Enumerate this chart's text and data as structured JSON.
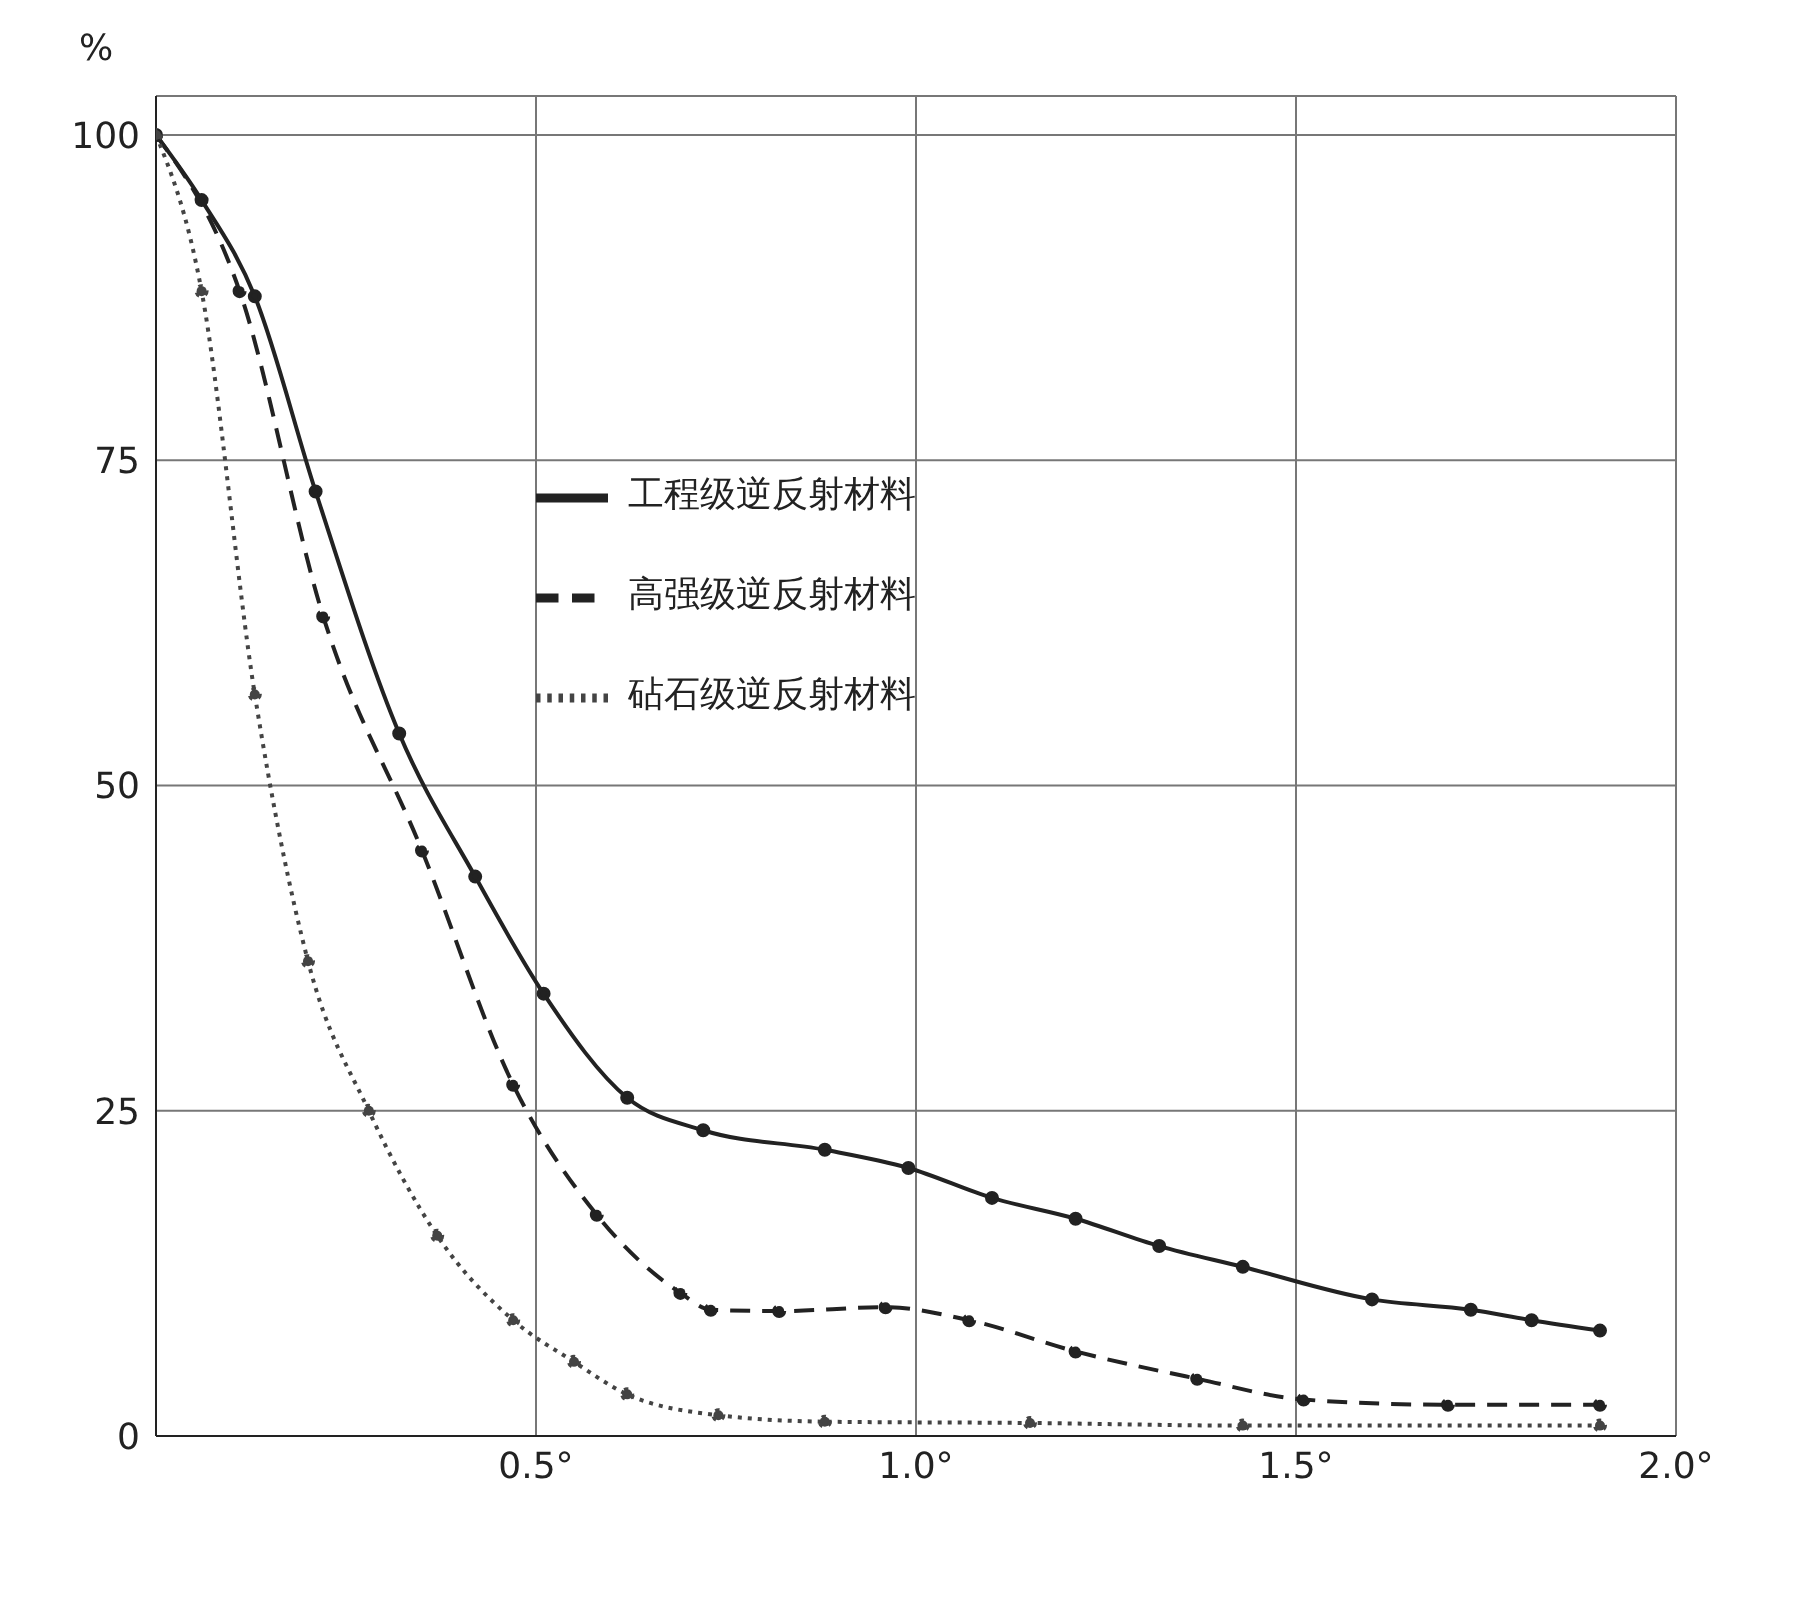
{
  "chart_data": {
    "type": "line",
    "ylabel": "%",
    "xlim": [
      0,
      2.0
    ],
    "ylim": [
      0,
      103
    ],
    "xticks": [
      {
        "value": 0.5,
        "label": "0.5°"
      },
      {
        "value": 1.0,
        "label": "1.0°"
      },
      {
        "value": 1.5,
        "label": "1.5°"
      },
      {
        "value": 2.0,
        "label": "2.0°"
      }
    ],
    "yticks": [
      0,
      25,
      50,
      75,
      100
    ],
    "grid": true,
    "legend": "top",
    "marker": "circle",
    "series": [
      {
        "name": "工程级逆反射材料",
        "color": "#222222",
        "line_style": "solid",
        "x": [
          0,
          0.06,
          0.13,
          0.21,
          0.32,
          0.42,
          0.51,
          0.62,
          0.72,
          0.88,
          0.99,
          1.1,
          1.21,
          1.32,
          1.43,
          1.6,
          1.73,
          1.81,
          1.9
        ],
        "values": [
          100,
          95,
          87.6,
          72.6,
          54,
          43,
          34,
          26,
          23.5,
          22,
          20.6,
          18.3,
          16.7,
          14.6,
          13,
          10.5,
          9.7,
          8.9,
          8.1
        ]
      },
      {
        "name": "高强级逆反射材料",
        "color": "#222222",
        "line_style": "dashed",
        "x": [
          0,
          0.11,
          0.22,
          0.35,
          0.47,
          0.58,
          0.69,
          0.73,
          0.82,
          0.96,
          1.07,
          1.21,
          1.37,
          1.51,
          1.7,
          1.9
        ],
        "values": [
          100,
          88,
          63,
          45,
          27,
          17,
          11,
          9.7,
          9.6,
          9.9,
          8.9,
          6.5,
          4.4,
          2.8,
          2.4,
          2.4
        ]
      },
      {
        "name": "砧石级逆反射材料",
        "color": "#444444",
        "line_style": "dotted",
        "x": [
          0,
          0.06,
          0.13,
          0.2,
          0.28,
          0.37,
          0.47,
          0.55,
          0.62,
          0.74,
          0.88,
          1.15,
          1.43,
          1.9
        ],
        "values": [
          100,
          88,
          57,
          36.5,
          25,
          15.4,
          8.9,
          5.7,
          3.2,
          1.6,
          1.1,
          1,
          0.8,
          0.8
        ]
      }
    ]
  }
}
